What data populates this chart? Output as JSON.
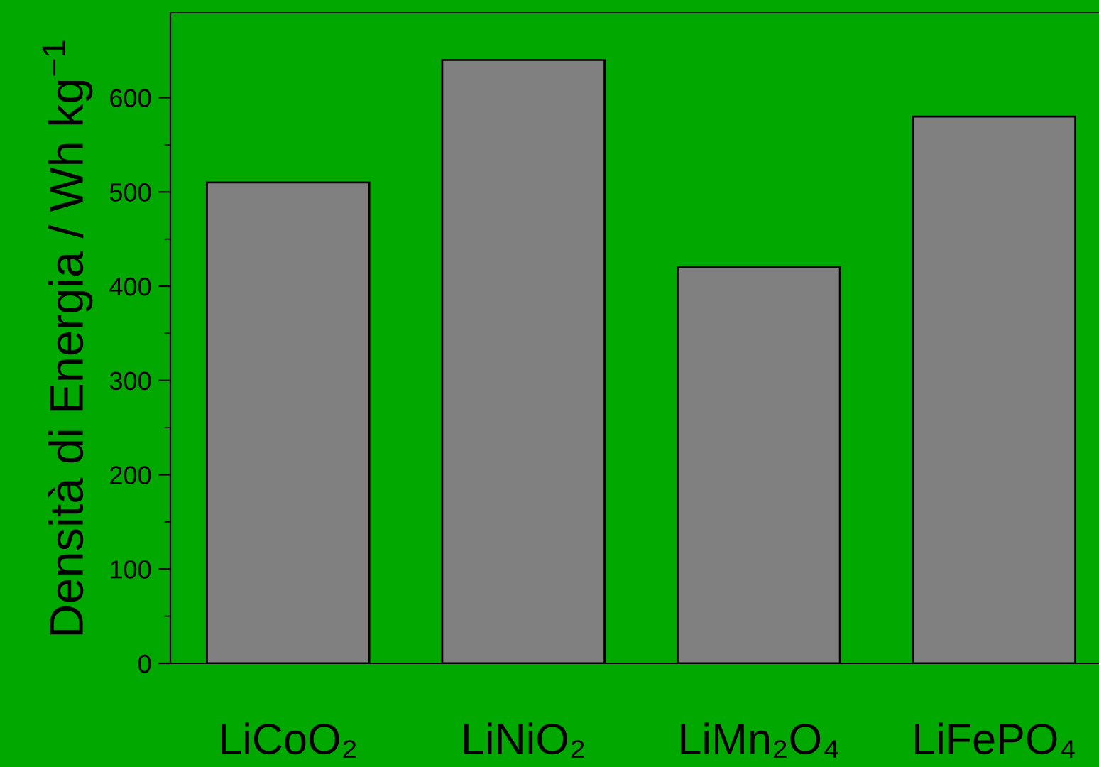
{
  "chart_data": {
    "type": "bar",
    "ylabel": "Densità di Energia / Wh kg$^{−1}$",
    "categories": [
      "LiCoO₂",
      "LiNiO₂",
      "LiMn₂O₄",
      "LiFePO₄"
    ],
    "values": [
      510,
      640,
      420,
      580
    ],
    "color": "#808080",
    "ylim": [
      0,
      690
    ],
    "yticks": [
      0,
      100,
      200,
      300,
      400,
      500,
      600
    ],
    "grid": false
  }
}
